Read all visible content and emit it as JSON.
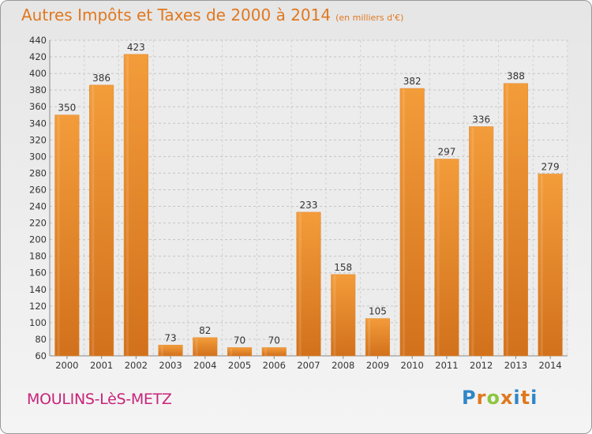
{
  "header": {
    "title": "Autres Impôts et Taxes de 2000 à 2014",
    "subtitle": "(en milliers d'€)"
  },
  "footer": {
    "town": "MOULINS-LèS-METZ",
    "logo": "Proxiti",
    "logo_colors": [
      "#2f86c8",
      "#e0781f",
      "#8cc63f",
      "#e0781f",
      "#2f86c8",
      "#e0781f",
      "#2f86c8"
    ]
  },
  "chart_data": {
    "type": "bar",
    "title": "Autres Impôts et Taxes de 2000 à 2014",
    "subtitle": "(en milliers d'€)",
    "xlabel": "",
    "ylabel": "",
    "categories": [
      "2000",
      "2001",
      "2002",
      "2003",
      "2004",
      "2005",
      "2006",
      "2007",
      "2008",
      "2009",
      "2010",
      "2011",
      "2012",
      "2013",
      "2014"
    ],
    "values": [
      350,
      386,
      423,
      73,
      82,
      70,
      70,
      233,
      158,
      105,
      382,
      297,
      336,
      388,
      279
    ],
    "ylim": [
      60,
      440
    ],
    "yticks": [
      60,
      80,
      100,
      120,
      140,
      160,
      180,
      200,
      220,
      240,
      260,
      280,
      300,
      320,
      340,
      360,
      380,
      400,
      420,
      440
    ],
    "grid": true,
    "legend": "none",
    "bar_color": "#f39c3a",
    "bar_color_dark": "#d2711c"
  }
}
